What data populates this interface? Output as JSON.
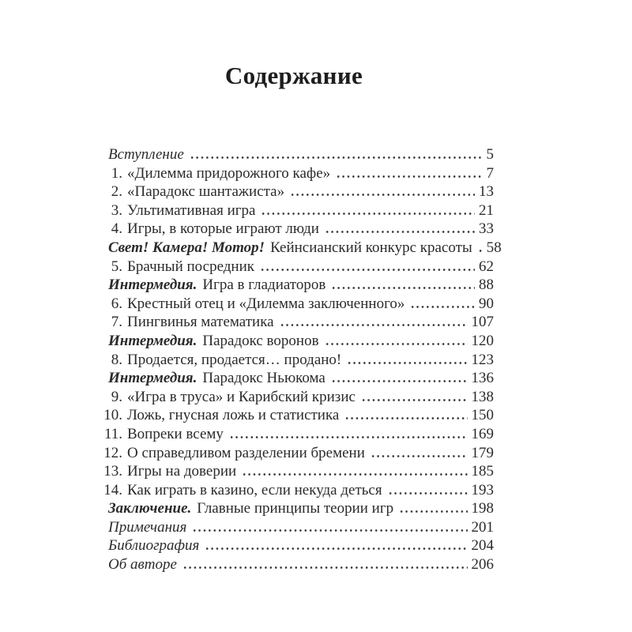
{
  "page": {
    "title": "Содержание"
  },
  "colors": {
    "background": "#ffffff",
    "text": "#2b2b2b",
    "title": "#1d1d1d",
    "leader_dots": "#333333"
  },
  "toc": {
    "entries": [
      {
        "style": "italic",
        "label": "Вступление",
        "page": "5"
      },
      {
        "num": "1.",
        "label": "«Дилемма придорожного кафе»",
        "page": "7"
      },
      {
        "num": "2.",
        "label": "«Парадокс шантажиста»",
        "page": "13"
      },
      {
        "num": "3.",
        "label": "Ультимативная игра",
        "page": "21"
      },
      {
        "num": "4.",
        "label": "Игры, в которые играют люди",
        "page": "33"
      },
      {
        "lead": "Свет! Камера! Мотор!",
        "label": "Кейнсианский конкурс красоты",
        "page": "58"
      },
      {
        "num": "5.",
        "label": "Брачный посредник",
        "page": "62"
      },
      {
        "lead": "Интермедия.",
        "label": "Игра в гладиаторов",
        "page": "88"
      },
      {
        "num": "6.",
        "label": "Крестный отец и «Дилемма заключенного»",
        "page": "90"
      },
      {
        "num": "7.",
        "label": "Пингвинья математика",
        "page": "107"
      },
      {
        "lead": "Интермедия.",
        "label": "Парадокс воронов",
        "page": "120"
      },
      {
        "num": "8.",
        "label": "Продается, продается… продано!",
        "page": "123"
      },
      {
        "lead": "Интермедия.",
        "label": "Парадокс Ньюкома",
        "page": "136"
      },
      {
        "num": "9.",
        "label": "«Игра в труса» и Карибский кризис",
        "page": "138"
      },
      {
        "num": "10.",
        "label": "Ложь, гнусная ложь и статистика",
        "page": "150"
      },
      {
        "num": "11.",
        "label": "Вопреки всему",
        "page": "169"
      },
      {
        "num": "12.",
        "label": "О справедливом разделении бремени",
        "page": "179"
      },
      {
        "num": "13.",
        "label": "Игры на доверии",
        "page": "185"
      },
      {
        "num": "14.",
        "label": "Как играть в казино, если некуда деться",
        "page": "193"
      },
      {
        "lead": "Заключение.",
        "label": "Главные принципы теории игр",
        "page": "198"
      },
      {
        "style": "italic",
        "label": "Примечания",
        "page": "201"
      },
      {
        "style": "italic",
        "label": "Библиография",
        "page": "204"
      },
      {
        "style": "italic",
        "label": "Об авторе",
        "page": "206"
      }
    ]
  }
}
